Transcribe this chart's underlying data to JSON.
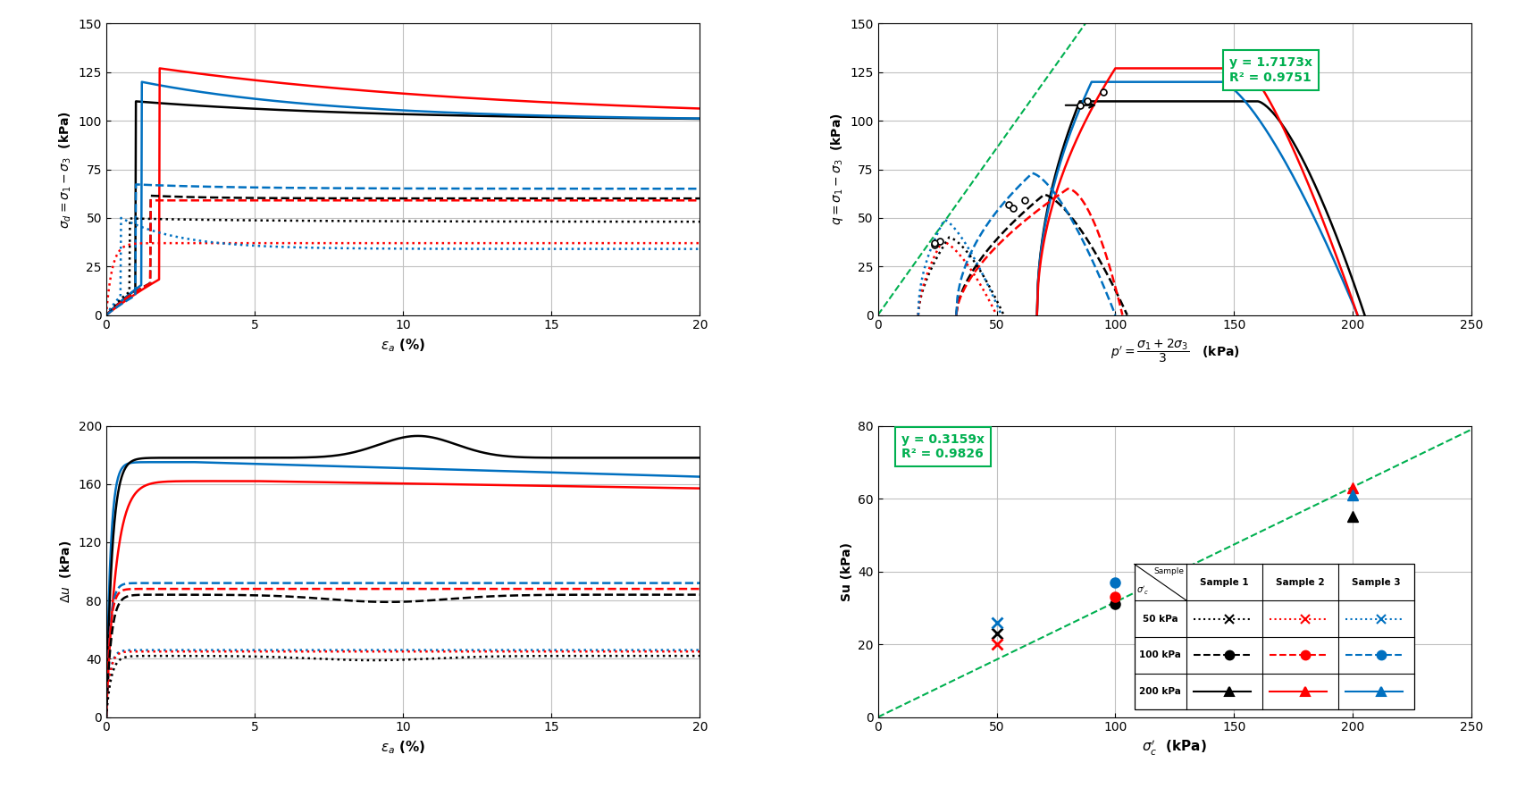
{
  "fig_width": 16.98,
  "fig_height": 8.82,
  "bg_color": "#ffffff",
  "grid_color": "#c0c0c0",
  "colors": {
    "black": "#000000",
    "red": "#ff0000",
    "blue": "#0070c0",
    "green": "#00b050"
  },
  "ax1": {
    "xlabel": "ε_a (%)",
    "ylabel": "σ_d = σ_1 − σ_3  (kPa)",
    "xlim": [
      0,
      20
    ],
    "ylim": [
      0,
      150
    ],
    "yticks": [
      0,
      25,
      50,
      75,
      100,
      125,
      150
    ],
    "xticks": [
      0,
      5,
      10,
      15,
      20
    ]
  },
  "ax2": {
    "eq_label": "y = 1.7173x\nR² = 0.9751",
    "xlim": [
      0,
      250
    ],
    "ylim": [
      0,
      150
    ],
    "yticks": [
      0,
      25,
      50,
      75,
      100,
      125,
      150
    ],
    "xticks": [
      0,
      50,
      100,
      150,
      200,
      250
    ]
  },
  "ax3": {
    "xlim": [
      0,
      20
    ],
    "ylim": [
      0,
      200
    ],
    "yticks": [
      0,
      40,
      80,
      120,
      160,
      200
    ],
    "xticks": [
      0,
      5,
      10,
      15,
      20
    ]
  },
  "ax4": {
    "eq_label": "y = 0.3159x\nR² = 0.9826",
    "xlim": [
      0,
      250
    ],
    "ylim": [
      0,
      80
    ],
    "yticks": [
      0,
      20,
      40,
      60,
      80
    ],
    "xticks": [
      0,
      50,
      100,
      150,
      200,
      250
    ]
  }
}
